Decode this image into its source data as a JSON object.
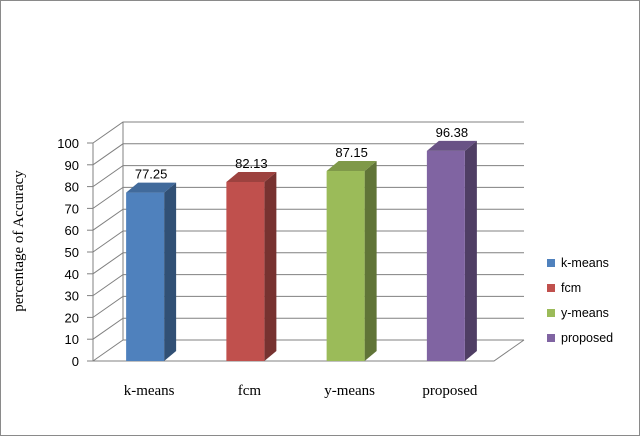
{
  "chart_data": {
    "type": "bar",
    "categories": [
      "k-means",
      "fcm",
      "y-means",
      "proposed"
    ],
    "values": [
      77.25,
      82.13,
      87.15,
      96.38
    ],
    "data_labels": [
      "77.25",
      "82.13",
      "87.15",
      "96.38"
    ],
    "title": "",
    "xlabel": "",
    "ylabel": "percentage of Accuracy",
    "ylim": [
      0,
      100
    ],
    "yticks": [
      0,
      10,
      20,
      30,
      40,
      50,
      60,
      70,
      80,
      90,
      100
    ],
    "grid": true,
    "legend": {
      "placement": "right",
      "entries": [
        "k-means",
        "fcm",
        "y-means",
        "proposed"
      ]
    },
    "colors": {
      "k-means": "#4f81bd",
      "fcm": "#c0504d",
      "y-means": "#9bbb59",
      "proposed": "#8064a2"
    }
  }
}
